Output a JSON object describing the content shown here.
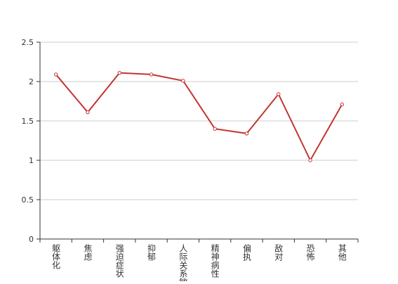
{
  "chart_data": {
    "type": "line",
    "categories": [
      "躯体化",
      "焦虑",
      "强迫症状",
      "抑郁",
      "人际关系敏感",
      "精神病性",
      "偏执",
      "敌对",
      "恐怖",
      "其他"
    ],
    "series": [
      {
        "color": "#c23531",
        "values": [
          2.09,
          1.61,
          2.11,
          2.09,
          2.01,
          1.4,
          1.34,
          1.84,
          1.0,
          1.71
        ]
      }
    ],
    "ylim": [
      0,
      2.5
    ],
    "yticks": [
      0,
      0.5,
      1,
      1.5,
      2,
      2.5
    ],
    "grid": true
  }
}
